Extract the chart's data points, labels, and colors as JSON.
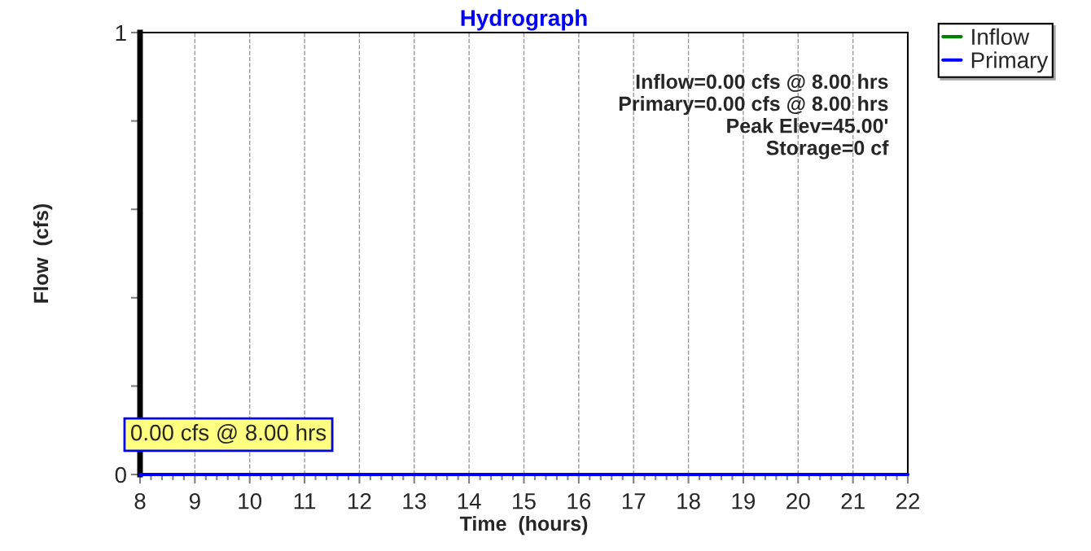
{
  "chart_data": {
    "type": "line",
    "title": "Hydrograph",
    "xlabel": "Time  (hours)",
    "ylabel": "Flow  (cfs)",
    "x": [
      8,
      22
    ],
    "series": [
      {
        "name": "Inflow",
        "color": "#008000",
        "values": [
          null,
          null
        ]
      },
      {
        "name": "Primary",
        "color": "#0000ff",
        "values": [
          0,
          0
        ]
      }
    ],
    "xlim": [
      8,
      22
    ],
    "xticks": [
      8,
      9,
      10,
      11,
      12,
      13,
      14,
      15,
      16,
      17,
      18,
      19,
      20,
      21,
      22
    ],
    "ylim": [
      0,
      1
    ],
    "yticks": [
      0,
      {
        "value": 0.2,
        "label": null
      },
      {
        "value": 0.4,
        "label": null
      },
      {
        "value": 0.6,
        "label": null
      },
      {
        "value": 0.8,
        "label": null
      },
      1
    ],
    "grid": "x",
    "legend": "top right",
    "marker": "none",
    "line_style": "solid",
    "annotations": [
      {
        "text": "0.00 cfs @ 8.00 hrs",
        "x": 8,
        "y": 0
      },
      "Inflow=0.00 cfs @ 8.00 hrs",
      "Primary=0.00 cfs @ 8.00 hrs",
      "Peak Elev=45.00'",
      "Storage=0 cf"
    ]
  }
}
